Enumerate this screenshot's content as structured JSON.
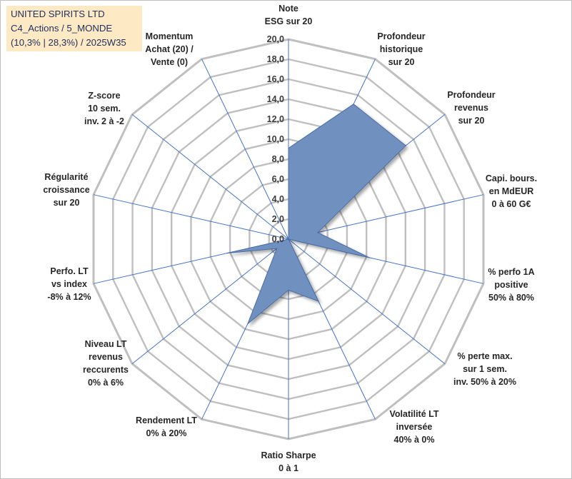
{
  "header": {
    "line1": "UNITED SPIRITS LTD",
    "line2": "C4_Actions / 5_MONDE",
    "line3": "(10,3% | 28,3%) / 2025W35"
  },
  "chart_data": {
    "type": "radar",
    "rlim": [
      0,
      20
    ],
    "tick_values": [
      0,
      2,
      4,
      6,
      8,
      10,
      12,
      14,
      16,
      18,
      20
    ],
    "tick_labels": [
      "0,0",
      "2,0",
      "4,0",
      "6,0",
      "8,0",
      "10,0",
      "12,0",
      "14,0",
      "16,0",
      "18,0",
      "20,0"
    ],
    "categories": [
      [
        "Note",
        "ESG sur 20"
      ],
      [
        "Profondeur",
        "historique",
        "sur 20"
      ],
      [
        "Profondeur",
        "revenus",
        "sur 20"
      ],
      [
        "Capi. bours.",
        "en MdEUR",
        "0 à 60 G€"
      ],
      [
        "% perfo 1A",
        "positive",
        "50% à 80%"
      ],
      [
        "% perte max.",
        "sur 1 sem.",
        "inv. 50% à 20%"
      ],
      [
        "Volatilité LT",
        "inversée",
        "40% à 0%"
      ],
      [
        "Ratio Sharpe",
        "0 à 1"
      ],
      [
        "Rendement LT",
        "0% à 20%"
      ],
      [
        "Niveau LT",
        "revenus",
        "reccurents",
        "0% à 6%"
      ],
      [
        "Perfo. LT",
        "vs index",
        "-8% à 12%"
      ],
      [
        "Régularité",
        "croissance",
        "sur 20"
      ],
      [
        "Z-score",
        "10 sem.",
        "inv. 2 à -2"
      ],
      [
        "Momentum",
        "Achat (20) /",
        "Vente (0)"
      ]
    ],
    "values": [
      9.1,
      15.0,
      15.0,
      3.0,
      8.3,
      0.0,
      6.9,
      5.1,
      9.4,
      1.5,
      6.3,
      0.0,
      0.0,
      0.0
    ],
    "grid": true,
    "fill_color": "#6f91c0",
    "edge_color": "#4b6ea3",
    "spoke_color": "#4472c4",
    "grid_color": "#bfbfbf"
  }
}
